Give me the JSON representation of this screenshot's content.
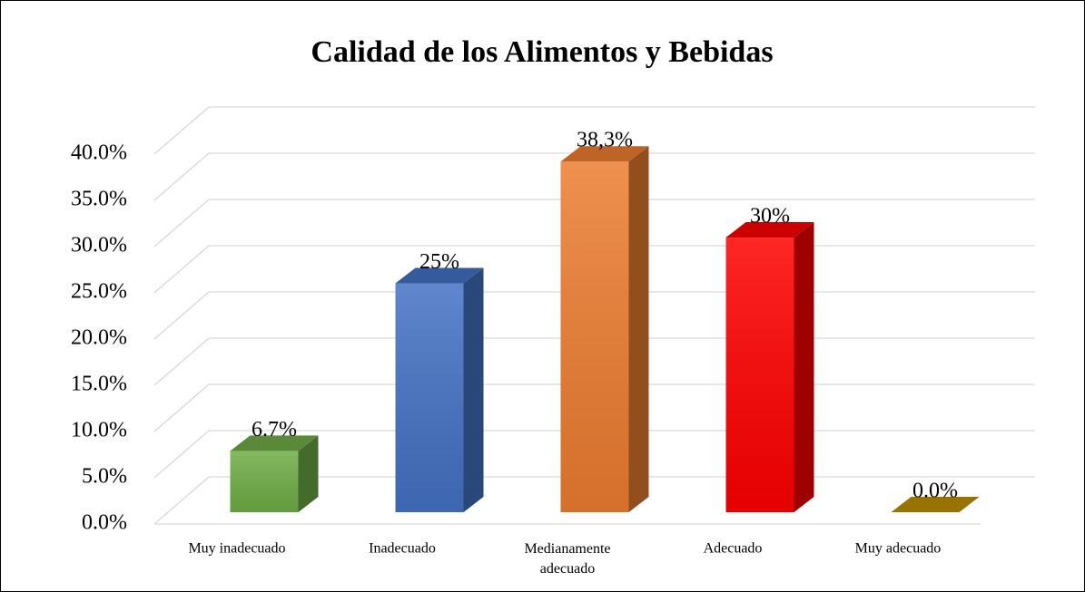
{
  "chart_data": {
    "type": "bar3d",
    "title": "Calidad de los Alimentos y Bebidas",
    "categories": [
      "Muy inadecuado",
      "Inadecuado",
      "Medianamente adecuado",
      "Adecuado",
      "Muy adecuado"
    ],
    "values": [
      6.7,
      25,
      38.3,
      30,
      0.0
    ],
    "value_labels": [
      "6.7%",
      "25%",
      "38,3%",
      "30%",
      "0.0%"
    ],
    "colors": [
      "#70ad47",
      "#4472c4",
      "#ed7d31",
      "#ff0000",
      "#bf9000"
    ],
    "ylim": [
      0,
      40
    ],
    "yticks": [
      {
        "value": 0,
        "label": "0.0%"
      },
      {
        "value": 5,
        "label": "5.0%"
      },
      {
        "value": 10,
        "label": "10.0%"
      },
      {
        "value": 15,
        "label": "15.0%"
      },
      {
        "value": 20,
        "label": "20.0%"
      },
      {
        "value": 25,
        "label": "25.0%"
      },
      {
        "value": 30,
        "label": "30.0%"
      },
      {
        "value": 35,
        "label": "35.0%"
      },
      {
        "value": 40,
        "label": "40.0%"
      }
    ],
    "grid": true
  }
}
